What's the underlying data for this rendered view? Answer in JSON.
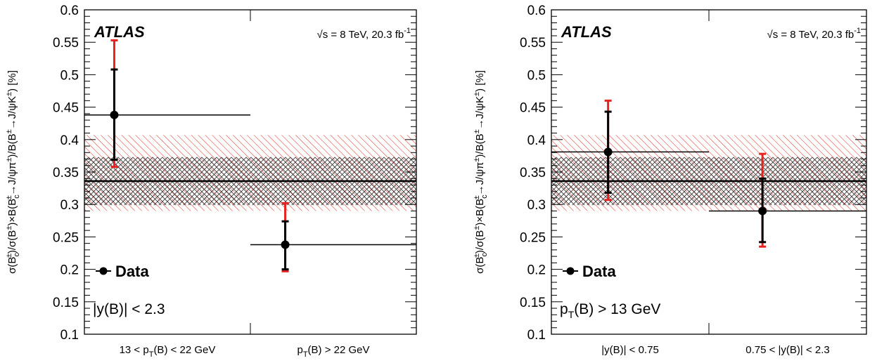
{
  "chart_data": [
    {
      "type": "scatter",
      "experiment": "ATLAS",
      "energy_label": "√s = 8 TeV, 20.3 fb",
      "lumi_superscript": "-1",
      "ylabel_parts": [
        "σ(B",
        "c",
        "±",
        ")/σ(B",
        "±",
        ")×B(B",
        "c",
        "±",
        "→J/ψπ",
        "±",
        ")/B(B",
        "±",
        "→J/ψK",
        "±",
        ") [%]"
      ],
      "ylim": [
        0.1,
        0.6
      ],
      "yticks": [
        "0.1",
        "0.15",
        "0.2",
        "0.25",
        "0.3",
        "0.35",
        "0.4",
        "0.45",
        "0.5",
        "0.55",
        "0.6"
      ],
      "bins": [
        {
          "label_pre": "13 < p",
          "label_sub": "T",
          "label_post": "(B) < 22 GeV"
        },
        {
          "label_pre": "p",
          "label_sub": "T",
          "label_post": "(B) > 22 GeV"
        }
      ],
      "points": [
        {
          "x": 0.18,
          "y": 0.438,
          "stat_low": 0.369,
          "stat_high": 0.508,
          "tot_low": 0.358,
          "tot_high": 0.553
        },
        {
          "x": 1.21,
          "y": 0.238,
          "stat_low": 0.2,
          "stat_high": 0.274,
          "tot_low": 0.197,
          "tot_high": 0.302
        }
      ],
      "combined": {
        "value": 0.336,
        "stat_band": [
          0.299,
          0.373
        ],
        "tot_band": [
          0.29,
          0.407
        ]
      },
      "legend": "Data",
      "selection": {
        "pre": "|y(B)| < 2.3",
        "sub": "",
        "post": ""
      }
    },
    {
      "type": "scatter",
      "experiment": "ATLAS",
      "energy_label": "√s = 8 TeV, 20.3 fb",
      "lumi_superscript": "-1",
      "ylabel_parts": [
        "σ(B",
        "c",
        "±",
        ")/σ(B",
        "±",
        ")×B(B",
        "c",
        "±",
        "→J/ψπ",
        "±",
        ")/B(B",
        "±",
        "→J/ψK",
        "±",
        ") [%]"
      ],
      "ylim": [
        0.1,
        0.6
      ],
      "yticks": [
        "0.1",
        "0.15",
        "0.2",
        "0.25",
        "0.3",
        "0.35",
        "0.4",
        "0.45",
        "0.5",
        "0.55",
        "0.6"
      ],
      "bins": [
        {
          "label_pre": "|y(B)| < 0.75",
          "label_sub": "",
          "label_post": ""
        },
        {
          "label_pre": "0.75 < |y(B)| < 2.3",
          "label_sub": "",
          "label_post": ""
        }
      ],
      "points": [
        {
          "x": 0.36,
          "y": 0.381,
          "stat_low": 0.318,
          "stat_high": 0.443,
          "tot_low": 0.307,
          "tot_high": 0.46
        },
        {
          "x": 1.34,
          "y": 0.29,
          "stat_low": 0.242,
          "stat_high": 0.34,
          "tot_low": 0.235,
          "tot_high": 0.378
        }
      ],
      "combined": {
        "value": 0.336,
        "stat_band": [
          0.299,
          0.373
        ],
        "tot_band": [
          0.29,
          0.407
        ]
      },
      "legend": "Data",
      "selection": {
        "pre": "p",
        "sub": "T",
        "post": "(B) > 13 GeV"
      }
    }
  ]
}
